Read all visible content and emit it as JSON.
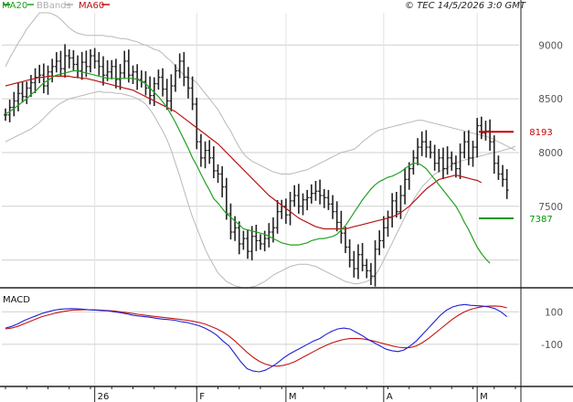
{
  "header": {
    "legend": [
      {
        "key": "ma20",
        "label": "MA20",
        "color": "#22a022"
      },
      {
        "key": "bbands",
        "label": "BBands",
        "color": "#b0b0b0"
      },
      {
        "key": "ma60",
        "label": "MA60",
        "color": "#b81414"
      }
    ],
    "copyright": "© TEC 14/5/2026 3:0 GMT"
  },
  "colors": {
    "bars": "#222222",
    "ma20": "#22a022",
    "ma60": "#b81414",
    "bbands": "#b8b8b8",
    "macd": "#2020d8",
    "signal": "#c41414",
    "resistance": "#cc0000",
    "support": "#009900",
    "grid": "#cfcfcf",
    "axis": "#222222"
  },
  "chart_data": [
    {
      "type": "ohlc",
      "title": "",
      "y_ticks": [
        9000,
        8500,
        8000,
        7500
      ],
      "y_tick_labels": [
        "9000",
        "8500",
        "8000",
        "7500"
      ],
      "ylim": [
        6750,
        9300
      ],
      "grid": true,
      "x_labels": [
        "26",
        "F",
        "M",
        "A",
        "M"
      ],
      "x_label_index": [
        21,
        45,
        66,
        89,
        111
      ],
      "levels": [
        {
          "name": "resistance",
          "value": 8193,
          "label": "8193"
        },
        {
          "name": "support",
          "value": 7387,
          "label": "7387"
        }
      ],
      "series": [
        {
          "name": "price_close",
          "x_start": 0,
          "values": [
            8350,
            8420,
            8480,
            8550,
            8520,
            8600,
            8650,
            8700,
            8720,
            8620,
            8750,
            8800,
            8850,
            8780,
            8900,
            8880,
            8820,
            8760,
            8840,
            8800,
            8900,
            8850,
            8800,
            8720,
            8750,
            8800,
            8680,
            8740,
            8850,
            8720,
            8750,
            8680,
            8660,
            8600,
            8530,
            8640,
            8700,
            8590,
            8480,
            8620,
            8760,
            8850,
            8700,
            8600,
            8450,
            8100,
            7950,
            8020,
            7950,
            7830,
            7800,
            7680,
            7430,
            7260,
            7300,
            7150,
            7200,
            7080,
            7220,
            7180,
            7150,
            7200,
            7260,
            7300,
            7450,
            7500,
            7420,
            7550,
            7600,
            7500,
            7560,
            7580,
            7620,
            7640,
            7600,
            7580,
            7520,
            7450,
            7350,
            7250,
            7120,
            7000,
            6920,
            7050,
            6950,
            6900,
            6850,
            7100,
            7180,
            7300,
            7400,
            7550,
            7450,
            7600,
            7750,
            7850,
            7950,
            8050,
            8100,
            8050,
            8000,
            7900,
            7950,
            7850,
            7950,
            7900,
            7850,
            8000,
            8100,
            7950,
            8050,
            8250,
            8180,
            8200,
            8100,
            7900,
            7800,
            7750,
            7650
          ]
        },
        {
          "name": "MA20",
          "x_start": 0,
          "values": [
            8360,
            8380,
            8410,
            8440,
            8470,
            8500,
            8540,
            8570,
            8610,
            8650,
            8670,
            8700,
            8720,
            8730,
            8740,
            8750,
            8760,
            8760,
            8750,
            8740,
            8730,
            8720,
            8710,
            8700,
            8690,
            8690,
            8690,
            8690,
            8690,
            8690,
            8690,
            8680,
            8660,
            8640,
            8600,
            8560,
            8520,
            8470,
            8420,
            8350,
            8280,
            8200,
            8120,
            8040,
            7950,
            7880,
            7800,
            7720,
            7650,
            7570,
            7530,
            7480,
            7430,
            7400,
            7360,
            7330,
            7290,
            7280,
            7270,
            7260,
            7250,
            7240,
            7220,
            7200,
            7180,
            7160,
            7150,
            7140,
            7140,
            7140,
            7150,
            7160,
            7180,
            7190,
            7200,
            7200,
            7210,
            7220,
            7240,
            7280,
            7320,
            7380,
            7440,
            7500,
            7560,
            7610,
            7660,
            7700,
            7730,
            7750,
            7770,
            7780,
            7800,
            7820,
            7850,
            7880,
            7900,
            7900,
            7880,
            7850,
            7800,
            7750,
            7700,
            7650,
            7600,
            7550,
            7500,
            7430,
            7350,
            7280,
            7200,
            7120,
            7060,
            7010,
            6970
          ]
        },
        {
          "name": "MA60",
          "x_start": 0,
          "values": [
            8620,
            8630,
            8640,
            8650,
            8660,
            8670,
            8680,
            8690,
            8700,
            8700,
            8710,
            8710,
            8710,
            8710,
            8710,
            8710,
            8700,
            8700,
            8690,
            8690,
            8680,
            8670,
            8660,
            8650,
            8640,
            8630,
            8620,
            8610,
            8600,
            8590,
            8580,
            8560,
            8540,
            8520,
            8500,
            8480,
            8460,
            8440,
            8420,
            8400,
            8380,
            8350,
            8320,
            8290,
            8260,
            8230,
            8200,
            8170,
            8140,
            8110,
            8080,
            8040,
            8000,
            7960,
            7920,
            7880,
            7840,
            7800,
            7760,
            7720,
            7680,
            7640,
            7600,
            7570,
            7540,
            7510,
            7480,
            7450,
            7420,
            7390,
            7370,
            7350,
            7330,
            7310,
            7300,
            7290,
            7290,
            7290,
            7290,
            7290,
            7290,
            7300,
            7310,
            7320,
            7330,
            7340,
            7350,
            7360,
            7370,
            7380,
            7390,
            7400,
            7420,
            7440,
            7470,
            7500,
            7540,
            7580,
            7620,
            7660,
            7690,
            7720,
            7750,
            7760,
            7770,
            7780,
            7790,
            7780,
            7770,
            7760,
            7750,
            7740,
            7720
          ]
        },
        {
          "name": "BBands upper",
          "x_start": 0,
          "values": [
            8800,
            8880,
            8950,
            9020,
            9080,
            9150,
            9200,
            9250,
            9300,
            9300,
            9300,
            9290,
            9270,
            9240,
            9200,
            9160,
            9130,
            9110,
            9100,
            9090,
            9090,
            9090,
            9090,
            9090,
            9080,
            9080,
            9070,
            9060,
            9060,
            9050,
            9040,
            9030,
            9010,
            9000,
            8980,
            8960,
            8950,
            8920,
            8880,
            8850,
            8800,
            8760,
            8720,
            8700,
            8680,
            8650,
            8600,
            8550,
            8500,
            8450,
            8400,
            8330,
            8260,
            8200,
            8120,
            8050,
            7990,
            7950,
            7920,
            7900,
            7880,
            7860,
            7840,
            7820,
            7810,
            7800,
            7800,
            7800,
            7810,
            7820,
            7830,
            7840,
            7860,
            7880,
            7900,
            7920,
            7940,
            7960,
            7980,
            8000,
            8010,
            8020,
            8030,
            8060,
            8100,
            8130,
            8160,
            8190,
            8210,
            8220,
            8230,
            8240,
            8250,
            8260,
            8270,
            8280,
            8290,
            8300,
            8300,
            8290,
            8280,
            8270,
            8260,
            8250,
            8240,
            8230,
            8220,
            8210,
            8200,
            8190,
            8180,
            8170,
            8160,
            8150,
            8140,
            8120,
            8100,
            8080,
            8060,
            8040,
            8020
          ]
        },
        {
          "name": "BBands lower",
          "x_start": 0,
          "values": [
            8100,
            8120,
            8140,
            8160,
            8180,
            8200,
            8220,
            8250,
            8280,
            8320,
            8360,
            8400,
            8430,
            8460,
            8480,
            8500,
            8510,
            8520,
            8530,
            8540,
            8550,
            8560,
            8570,
            8560,
            8560,
            8560,
            8550,
            8550,
            8540,
            8530,
            8520,
            8500,
            8480,
            8450,
            8400,
            8340,
            8270,
            8200,
            8120,
            8020,
            7900,
            7780,
            7650,
            7520,
            7400,
            7300,
            7200,
            7100,
            7020,
            6950,
            6880,
            6840,
            6800,
            6780,
            6760,
            6750,
            6740,
            6740,
            6750,
            6760,
            6780,
            6800,
            6830,
            6860,
            6880,
            6900,
            6920,
            6940,
            6950,
            6960,
            6960,
            6960,
            6950,
            6940,
            6920,
            6900,
            6880,
            6860,
            6840,
            6820,
            6800,
            6790,
            6780,
            6780,
            6790,
            6800,
            6820,
            6860,
            6920,
            7000,
            7080,
            7160,
            7240,
            7320,
            7400,
            7480,
            7560,
            7620,
            7680,
            7720,
            7760,
            7800,
            7820,
            7840,
            7860,
            7880,
            7900,
            7920,
            7930,
            7940,
            7950,
            7960,
            7970,
            7980,
            7990,
            8000,
            8010,
            8020,
            8030,
            8040,
            8060
          ]
        }
      ]
    },
    {
      "type": "line",
      "title": "MACD",
      "y_ticks": [
        100,
        -100
      ],
      "y_tick_labels": [
        "100",
        "-100"
      ],
      "ylim": [
        -360,
        220
      ],
      "grid": true,
      "series": [
        {
          "name": "MACD",
          "x_start": 0,
          "values": [
            0,
            10,
            25,
            45,
            60,
            75,
            90,
            100,
            110,
            115,
            118,
            120,
            118,
            115,
            112,
            110,
            108,
            106,
            100,
            95,
            88,
            80,
            75,
            70,
            66,
            60,
            55,
            52,
            48,
            40,
            35,
            25,
            15,
            0,
            -20,
            -45,
            -80,
            -110,
            -160,
            -210,
            -250,
            -265,
            -270,
            -260,
            -240,
            -215,
            -185,
            -160,
            -140,
            -120,
            -100,
            -80,
            -65,
            -40,
            -20,
            -5,
            0,
            -5,
            -25,
            -45,
            -70,
            -90,
            -110,
            -130,
            -140,
            -145,
            -135,
            -110,
            -80,
            -40,
            0,
            40,
            80,
            110,
            130,
            140,
            145,
            140,
            138,
            135,
            130,
            120,
            100,
            70
          ]
        },
        {
          "name": "signal",
          "x_start": 0,
          "values": [
            -5,
            0,
            10,
            25,
            40,
            55,
            70,
            80,
            90,
            98,
            105,
            110,
            112,
            113,
            113,
            112,
            110,
            108,
            105,
            100,
            95,
            90,
            85,
            80,
            75,
            70,
            66,
            62,
            58,
            53,
            48,
            42,
            35,
            25,
            10,
            -5,
            -25,
            -50,
            -80,
            -115,
            -150,
            -180,
            -205,
            -222,
            -232,
            -235,
            -230,
            -220,
            -205,
            -185,
            -165,
            -145,
            -125,
            -108,
            -92,
            -80,
            -70,
            -65,
            -64,
            -66,
            -72,
            -80,
            -90,
            -100,
            -110,
            -118,
            -122,
            -120,
            -110,
            -90,
            -65,
            -35,
            -5,
            25,
            55,
            80,
            100,
            115,
            125,
            132,
            135,
            136,
            134,
            125
          ]
        }
      ]
    }
  ]
}
